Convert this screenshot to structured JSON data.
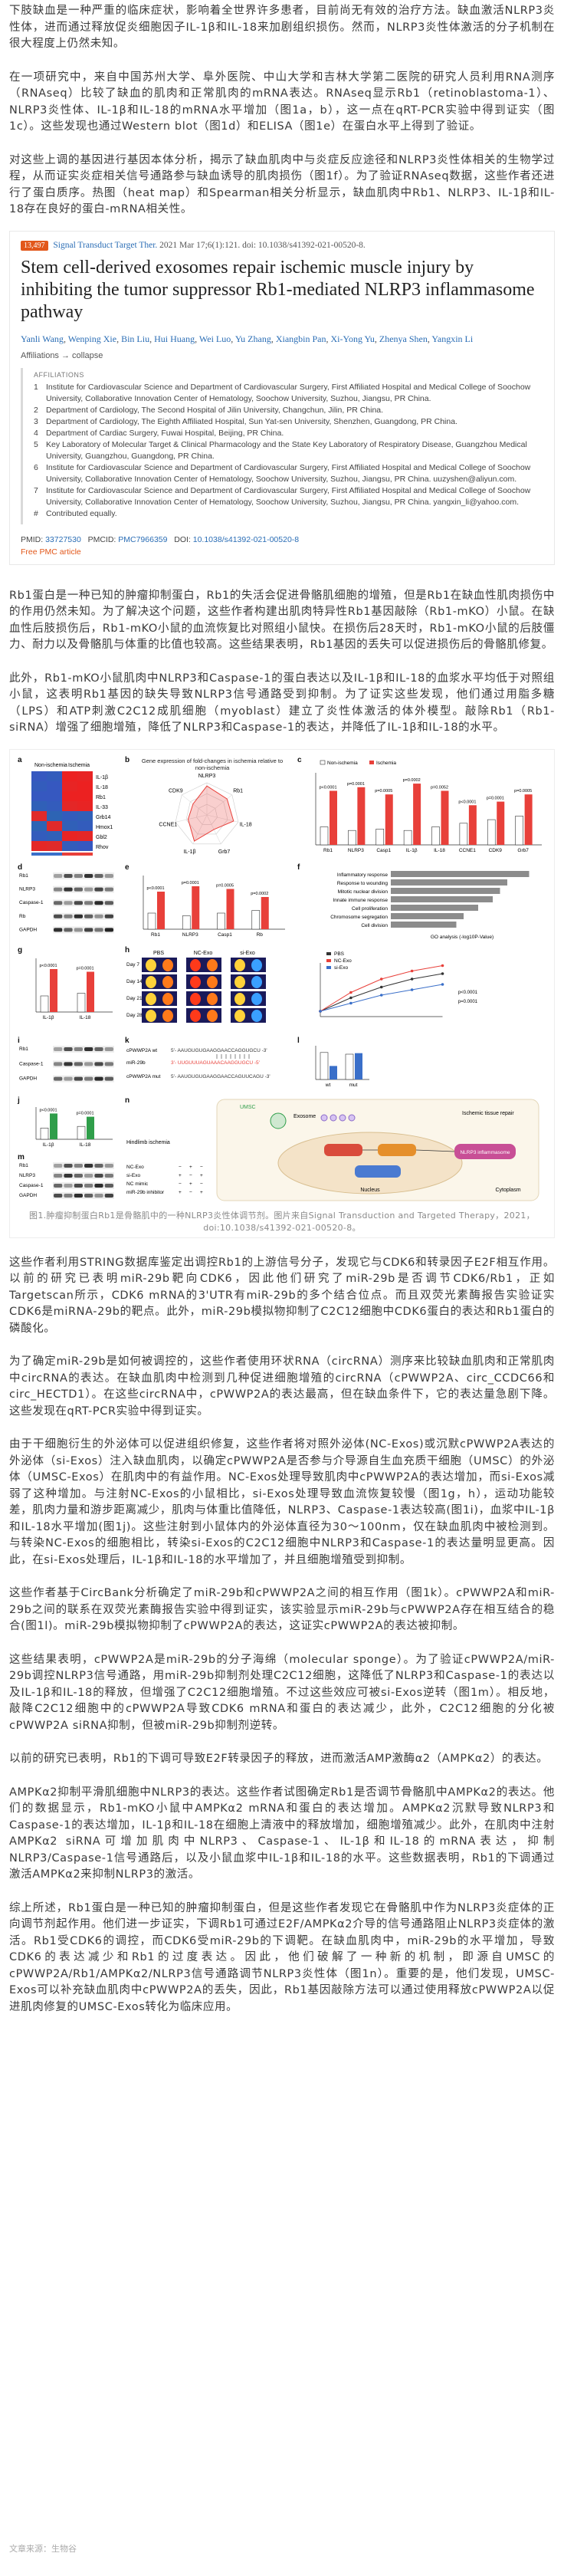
{
  "paragraphs_top": [
    "下肢缺血是一种严重的临床症状，影响着全世界许多患者，目前尚无有效的治疗方法。缺血激活NLRP3炎性体，进而通过释放促炎细胞因子IL-1β和IL-18来加剧组织损伤。然而，NLRP3炎性体激活的分子机制在很大程度上仍然未知。",
    "在一项研究中，来自中国苏州大学、阜外医院、中山大学和吉林大学第二医院的研究人员利用RNA测序（RNAseq）比较了缺血的肌肉和正常肌肉的mRNA表达。RNAseq显示Rb1（retinoblastoma-1）、NLRP3炎性体、IL-1β和IL-18的mRNA水平增加（图1a，b），这一点在qRT-PCR实验中得到证实（图1c）。这些发现也通过Western blot（图1d）和ELISA（图1e）在蛋白水平上得到了验证。",
    "对这些上调的基因进行基因本体分析，揭示了缺血肌肉中与炎症反应途径和NLRP3炎性体相关的生物学过程，从而证实炎症相关信号通路参与缺血诱导的肌肉损伤（图1f）。为了验证RNAseq数据，这些作者还进行了蛋白质序。热图（heat map）和Spearman相关分析显示，缺血肌肉中Rb1、NLRP3、IL-1β和IL-18存在良好的蛋白-mRNA相关性。"
  ],
  "citation": {
    "badge": "13,497",
    "journal": "Signal Transduct Target Ther.",
    "issue": " 2021 Mar 17;6(1):121. doi: 10.1038/s41392-021-00520-8.",
    "title": "Stem cell-derived exosomes repair ischemic muscle injury by inhibiting the tumor suppressor Rb1-mediated NLRP3 inflammasome pathway",
    "authors": [
      "Yanli Wang",
      "Wenping Xie",
      "Bin Liu",
      "Hui Huang",
      "Wei Luo",
      "Yu Zhang",
      "Xiangbin Pan",
      "Xi-Yong Yu",
      "Zhenya Shen",
      "Yangxin Li"
    ],
    "affiliations_toggle": "Affiliations → collapse",
    "affiliations_head": "AFFILIATIONS",
    "affiliations": [
      {
        "n": "1",
        "text": "Institute for Cardiovascular Science and Department of Cardiovascular Surgery, First Affiliated Hospital and Medical College of Soochow University, Collaborative Innovation Center of Hematology, Soochow University, Suzhou, Jiangsu, PR China."
      },
      {
        "n": "2",
        "text": "Department of Cardiology, The Second Hospital of Jilin University, Changchun, Jilin, PR China."
      },
      {
        "n": "3",
        "text": "Department of Cardiology, The Eighth Affiliated Hospital, Sun Yat-sen University, Shenzhen, Guangdong, PR China."
      },
      {
        "n": "4",
        "text": "Department of Cardiac Surgery, Fuwai Hospital, Beijing, PR China."
      },
      {
        "n": "5",
        "text": "Key Laboratory of Molecular Target & Clinical Pharmacology and the State Key Laboratory of Respiratory Disease, Guangzhou Medical University, Guangzhou, Guangdong, PR China."
      },
      {
        "n": "6",
        "text": "Institute for Cardiovascular Science and Department of Cardiovascular Surgery, First Affiliated Hospital and Medical College of Soochow University, Collaborative Innovation Center of Hematology, Soochow University, Suzhou, Jiangsu, PR China. uuzyshen@aliyun.com."
      },
      {
        "n": "7",
        "text": "Institute for Cardiovascular Science and Department of Cardiovascular Surgery, First Affiliated Hospital and Medical College of Soochow University, Collaborative Innovation Center of Hematology, Soochow University, Suzhou, Jiangsu, PR China. yangxin_li@yahoo.com."
      },
      {
        "n": "#",
        "text": "Contributed equally."
      }
    ],
    "pmid_label": "PMID: ",
    "pmid": "33727530",
    "pmcid_label": "PMCID: ",
    "pmcid": "PMC7966359",
    "doi_label": "DOI: ",
    "doi": "10.1038/s41392-021-00520-8",
    "free": "Free PMC article"
  },
  "paragraphs_mid": [
    "Rb1蛋白是一种已知的肿瘤抑制蛋白，Rb1的失活会促进骨骼肌细胞的增殖，但是Rb1在缺血性肌肉损伤中的作用仍然未知。为了解决这个问题，这些作者构建出肌肉特异性Rb1基因敲除（Rb1-mKO）小鼠。在缺血性后肢损伤后，Rb1-mKO小鼠的血流恢复比对照组小鼠快。在损伤后28天时，Rb1-mKO小鼠的后肢僵力、耐力以及骨骼肌与体重的比值也较高。这些结果表明，Rb1基因的丢失可以促进损伤后的骨骼肌修复。",
    "此外，Rb1-mKO小鼠肌肉中NLRP3和Caspase-1的蛋白表达以及IL-1β和IL-18的血浆水平均低于对照组小鼠，这表明Rb1基因的缺失导致NLRP3信号通路受到抑制。为了证实这些发现，他们通过用脂多糖（LPS）和ATP刺激C2C12成肌细胞（myoblast）建立了炎性体激活的体外模型。敲除Rb1（Rb1-siRNA）增强了细胞增殖，降低了NLRP3和Caspase-1的表达，并降低了IL-1β和IL-18的水平。"
  ],
  "figure": {
    "caption": "图1.肿瘤抑制蛋白Rb1是骨骼肌中的一种NLRP3炎性体调节剂。图片来自Signal Transduction and Targeted Therapy，2021，doi:10.1038/s41392-021-00520-8。",
    "legend_non_ischemia": "Non-ischemia",
    "legend_ischemia": "Ischemia",
    "heat_head": [
      "Non-ischemia",
      "Ischemia",
      "Group"
    ],
    "heat_genes": [
      "IL-1β",
      "IL-18",
      "Rb1",
      "IL-33",
      "Grb14",
      "Hmox1",
      "Gbl2",
      "Rhov"
    ],
    "radar_title": "Gene expression of fold-changes in ischemia relative to non-ischemia",
    "radar_genes": [
      "NLRP3",
      "Rb1",
      "IL-18",
      "Grb7",
      "IL-1β",
      "CCNE1",
      "CDK9"
    ],
    "go_terms": [
      "Inflammatory response",
      "Response to wounding",
      "Mitotic nuclear division",
      "Innate immune response",
      "Cell proliferation",
      "Chromosome segregation",
      "Cell division"
    ],
    "go_xlabel": "GO analysis (-log10P-Value)",
    "wb_labels_d": [
      "Rb1",
      "NLRP3",
      "Caspase-1",
      "Rb",
      "GAPDH"
    ],
    "wb_labels_i": [
      "Rb1",
      "Caspase-1",
      "GAPDH"
    ],
    "wb_labels_m": [
      "PBS",
      "NC-Exo",
      "si-Exo",
      "Rb1",
      "NLRP3",
      "Caspase-1",
      "GAPDH"
    ],
    "time_labels": [
      "Day 7",
      "Day 14",
      "Day 21",
      "Day 28"
    ],
    "panel_h_groups": [
      "PBS",
      "NC-Exo",
      "si-Exo"
    ],
    "mir_labels": [
      "cPWWP2A wt",
      "miR-29b",
      "cPWWP2A mut"
    ],
    "seq_wt": "5'- AAUGUGUGAAGGAACCAGGUGCU -3'",
    "seq_mir": "3'- UUGUUUAGUAAACAAGGUGCU -5'",
    "seq_mut": "5'- AAUGUGUGAAGGAACCAGUUCAGU -3'",
    "umsc_label": "UMSC",
    "exosome_label": "Exosome",
    "hindlimb_label": "Hindlimb ischemia",
    "repair_label": "Ischemic tissue repair",
    "nucleus_label": "Nucleus",
    "cytoplasm_label": "Cytoplasm",
    "nlrp3_label": "NLRP3 inflammasome",
    "table_rows": [
      "NC-Exo",
      "si-Exo",
      "NC mimic",
      "miR-29b inhibitor"
    ],
    "stats": [
      "p<0.0001",
      "p=0.0001",
      "p=0.0005",
      "p=0.0002",
      "p=0.0052"
    ],
    "panel_letters": [
      "a",
      "b",
      "c",
      "d",
      "e",
      "f",
      "g",
      "h",
      "i",
      "j",
      "k",
      "l",
      "m",
      "n"
    ]
  },
  "paragraphs_bottom": [
    "这些作者利用STRING数据库鉴定出调控Rb1的上游信号分子，发现它与CDK6和转录因子E2F相互作用。以前的研究已表明miR-29b靶向CDK6，因此他们研究了miR-29b是否调节CDK6/Rb1，正如Targetscan所示，CDK6 mRNA的3'UTR有miR-29b的多个结合位点。而且双荧光素酶报告实验证实CDK6是miRNA-29b的靶点。此外，miR-29b模拟物抑制了C2C12细胞中CDK6蛋白的表达和Rb1蛋白的磷酸化。",
    "为了确定miR-29b是如何被调控的，这些作者使用环状RNA（circRNA）测序来比较缺血肌肉和正常肌肉中circRNA的表达。在缺血肌肉中检测到几种促进细胞增殖的circRNA（cPWWP2A、circ_CCDC66和circ_HECTD1）。在这些circRNA中，cPWWP2A的表达最高，但在缺血条件下，它的表达量急剧下降。这些发现在qRT-PCR实验中得到证实。",
    "由于干细胞衍生的外泌体可以促进组织修复，这些作者将对照外泌体(NC-Exos)或沉默cPWWP2A表达的外泌体（si-Exos）注入缺血肌肉，以确定cPWWP2A是否参与介导源自生血充质干细胞（UMSC）的外泌体（UMSC-Exos）在肌肉中的有益作用。NC-Exos处理导致肌肉中cPWWP2A的表达增加，而si-Exos减弱了这种增加。与注射NC-Exos的小鼠相比，si-Exos处理导致血流恢复较慢（图1g，h），运动功能较差，肌肉力量和游步距离减少，肌肉与体重比值降低，NLRP3、Caspase-1表达较高(图1i)，血浆中IL-1β和IL-18水平增加(图1j)。这些注射到小鼠体内的外泌体直径为30～100nm，仅在缺血肌肉中被检测到。与转染NC-Exos的细胞相比，转染si-Exos的C2C12细胞中NLRP3和Caspase-1的表达量明显更高。因此，在si-Exos处理后，IL-1β和IL-18的水平增加了，并且细胞增殖受到抑制。",
    "这些作者基于CircBank分析确定了miR-29b和cPWWP2A之间的相互作用（图1k）。cPWWP2A和miR-29b之间的联系在双荧光素酶报告实验中得到证实，该实验显示miR-29b与cPWWP2A存在相互结合的稳合(图1l)。miR-29b模拟物抑制了cPWWP2A的表达，这证实cPWWP2A的表达被抑制。",
    "这些结果表明，cPWWP2A是miR-29b的分子海绵（molecular sponge）。为了验证cPWWP2A/miR-29b调控NLRP3信号通路，用miR-29b抑制剂处理C2C12细胞，这降低了NLRP3和Caspase-1的表达以及IL-1β和IL-18的释放，但增强了C2C12细胞增殖。不过这些效应可被si-Exos逆转（图1m）。相反地，敲降C2C12细胞中的cPWWP2A导致CDK6 mRNA和蛋白的表达减少，此外，C2C12细胞的分化被cPWWP2A siRNA抑制，但被miR-29b抑制剂逆转。",
    "以前的研究已表明，Rb1的下调可导致E2F转录因子的释放，进而激活AMP激酶α2（AMPKα2）的表达。",
    "AMPKα2抑制平滑肌细胞中NLRP3的表达。这些作者试图确定Rb1是否调节骨骼肌中AMPKα2的表达。他们的数据显示，Rb1-mKO小鼠中AMPKα2 mRNA和蛋白的表达增加。AMPKα2沉默导致NLRP3和Caspase-1的表达增加，IL-1β和IL-18在细胞上清液中的释放增加，细胞增殖减少。此外，在肌肉中注射AMPKα2 siRNA可增加肌肉中NLRP3、Caspase-1、IL-1β和IL-18的mRNA表达，抑制NLRP3/Caspase-1信号通路后，以及小鼠血浆中IL-1β和IL-18的水平。这些数据表明，Rb1的下调通过激活AMPKα2来抑制NLRP3的激活。",
    "综上所述，Rb1蛋白是一种已知的肿瘤抑制蛋白，但是这些作者发现它在骨骼肌中作为NLRP3炎症体的正向调节剂起作用。他们进一步证实，下调Rb1可通过E2F/AMPKα2介导的信号通路阻止NLRP3炎症体的激活。Rb1受CDK6的调控，而CDK6受miR-29b的下调靶。在缺血肌肉中，miR-29b的水平增加，导致CDK6的表达减少和Rb1的过度表达。因此，他们破解了一种新的机制，即源自UMSC的cPWWP2A/Rb1/AMPKα2/NLRP3信号通路调节NLRP3炎性体（图1n）。重要的是，他们发现，UMSC-Exos可以补充缺血肌肉中cPWWP2A的丢失，因此，Rb1基因敲除方法可以通过使用释放cPWWP2A以促进肌肉修复的UMSC-Exos转化为临床应用。"
  ],
  "footer": "文章来源：生物谷"
}
